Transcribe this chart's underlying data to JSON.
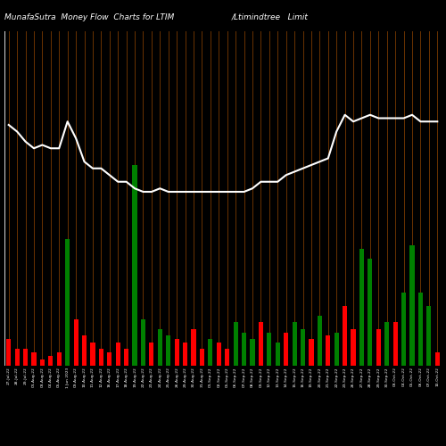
{
  "title_left": "MunafaSutra  Money Flow  Charts for LTIM",
  "title_right": "/Ltimindtree   Limit",
  "background_color": "#000000",
  "bar_grid_color": "#7B3A00",
  "line_color": "#ffffff",
  "bar_colors": [
    "red",
    "red",
    "red",
    "red",
    "red",
    "red",
    "red",
    "green",
    "red",
    "red",
    "red",
    "red",
    "red",
    "red",
    "red",
    "green",
    "green",
    "red",
    "green",
    "green",
    "red",
    "red",
    "red",
    "red",
    "green",
    "red",
    "red",
    "green",
    "green",
    "green",
    "red",
    "green",
    "green",
    "red",
    "green",
    "green",
    "red",
    "green",
    "red",
    "green",
    "red",
    "red",
    "green",
    "green",
    "red",
    "green",
    "red",
    "green",
    "green",
    "green",
    "green",
    "red"
  ],
  "bar_heights": [
    8,
    5,
    5,
    4,
    2,
    3,
    4,
    38,
    14,
    9,
    7,
    5,
    4,
    7,
    5,
    60,
    14,
    7,
    11,
    9,
    8,
    7,
    11,
    5,
    8,
    7,
    5,
    13,
    10,
    8,
    13,
    10,
    7,
    10,
    13,
    11,
    8,
    15,
    9,
    10,
    18,
    11,
    35,
    32,
    11,
    13,
    13,
    22,
    36,
    22,
    18,
    4
  ],
  "line_values": [
    72,
    70,
    67,
    65,
    66,
    65,
    65,
    73,
    68,
    61,
    59,
    59,
    57,
    55,
    55,
    53,
    52,
    52,
    53,
    52,
    52,
    52,
    52,
    52,
    52,
    52,
    52,
    52,
    52,
    53,
    55,
    55,
    55,
    57,
    58,
    59,
    60,
    61,
    62,
    70,
    75,
    73,
    74,
    75,
    74,
    74,
    74,
    74,
    75,
    73,
    73,
    73
  ],
  "n_bars": 52,
  "figsize": [
    5.0,
    5.0
  ],
  "dpi": 100,
  "xlabel_labels": [
    "27-Jul-22",
    "28-Jul-22",
    "29-Jul-22",
    "01-Aug-22",
    "03-Aug-22",
    "04-Aug-22",
    "05-Aug-22",
    "1 Jun 2023",
    "09-Aug-22",
    "10-Aug-22",
    "11-Aug-22",
    "12-Aug-22",
    "16-Aug-22",
    "17-Aug-22",
    "18-Aug-22",
    "19-Aug-22",
    "22-Aug-22",
    "23-Aug-22",
    "24-Aug-22",
    "25-Aug-22",
    "26-Aug-22",
    "29-Aug-22",
    "30-Aug-22",
    "31-Aug-22",
    "01-Sep-22",
    "02-Sep-22",
    "05-Sep-22",
    "06-Sep-22",
    "07-Sep-22",
    "08-Sep-22",
    "09-Sep-22",
    "12-Sep-22",
    "13-Sep-22",
    "14-Sep-22",
    "15-Sep-22",
    "16-Sep-22",
    "19-Sep-22",
    "20-Sep-22",
    "21-Sep-22",
    "22-Sep-22",
    "23-Sep-22",
    "26-Sep-22",
    "27-Sep-22",
    "28-Sep-22",
    "29-Sep-22",
    "30-Sep-22",
    "03-Oct-22",
    "04-Oct-22",
    "05-Oct-22",
    "06-Oct-22",
    "07-Oct-22",
    "10-Oct-22"
  ]
}
